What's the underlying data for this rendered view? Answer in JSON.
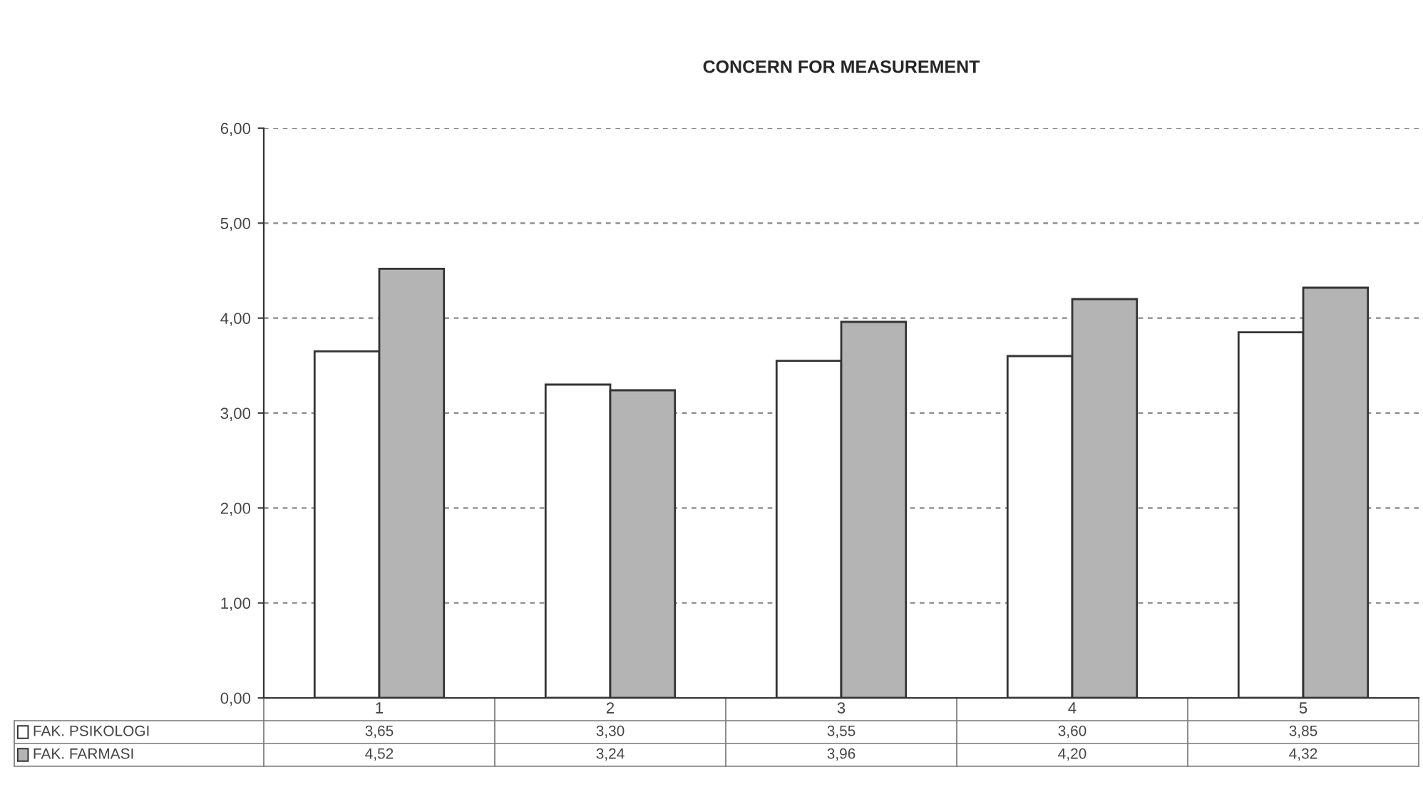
{
  "chart_data": {
    "type": "bar",
    "title": "CONCERN FOR MEASUREMENT",
    "categories": [
      "1",
      "2",
      "3",
      "4",
      "5"
    ],
    "series": [
      {
        "name": "FAK. PSIKOLOGI",
        "color": "#ffffff",
        "values": [
          3.65,
          3.3,
          3.55,
          3.6,
          3.85
        ],
        "value_labels": [
          "3,65",
          "3,30",
          "3,55",
          "3,60",
          "3,85"
        ]
      },
      {
        "name": "FAK. FARMASI",
        "color": "#b4b4b4",
        "values": [
          4.52,
          3.24,
          3.96,
          4.2,
          4.32
        ],
        "value_labels": [
          "4,52",
          "3,24",
          "3,96",
          "4,20",
          "4,32"
        ]
      }
    ],
    "ylim": [
      0,
      6
    ],
    "yticks": [
      {
        "value": 0,
        "label": "0,00"
      },
      {
        "value": 1,
        "label": "1,00"
      },
      {
        "value": 2,
        "label": "2,00"
      },
      {
        "value": 3,
        "label": "3,00"
      },
      {
        "value": 4,
        "label": "4,00"
      },
      {
        "value": 5,
        "label": "5,00"
      },
      {
        "value": 6,
        "label": "6,00"
      }
    ],
    "grid": "y",
    "legend": "bottom"
  }
}
